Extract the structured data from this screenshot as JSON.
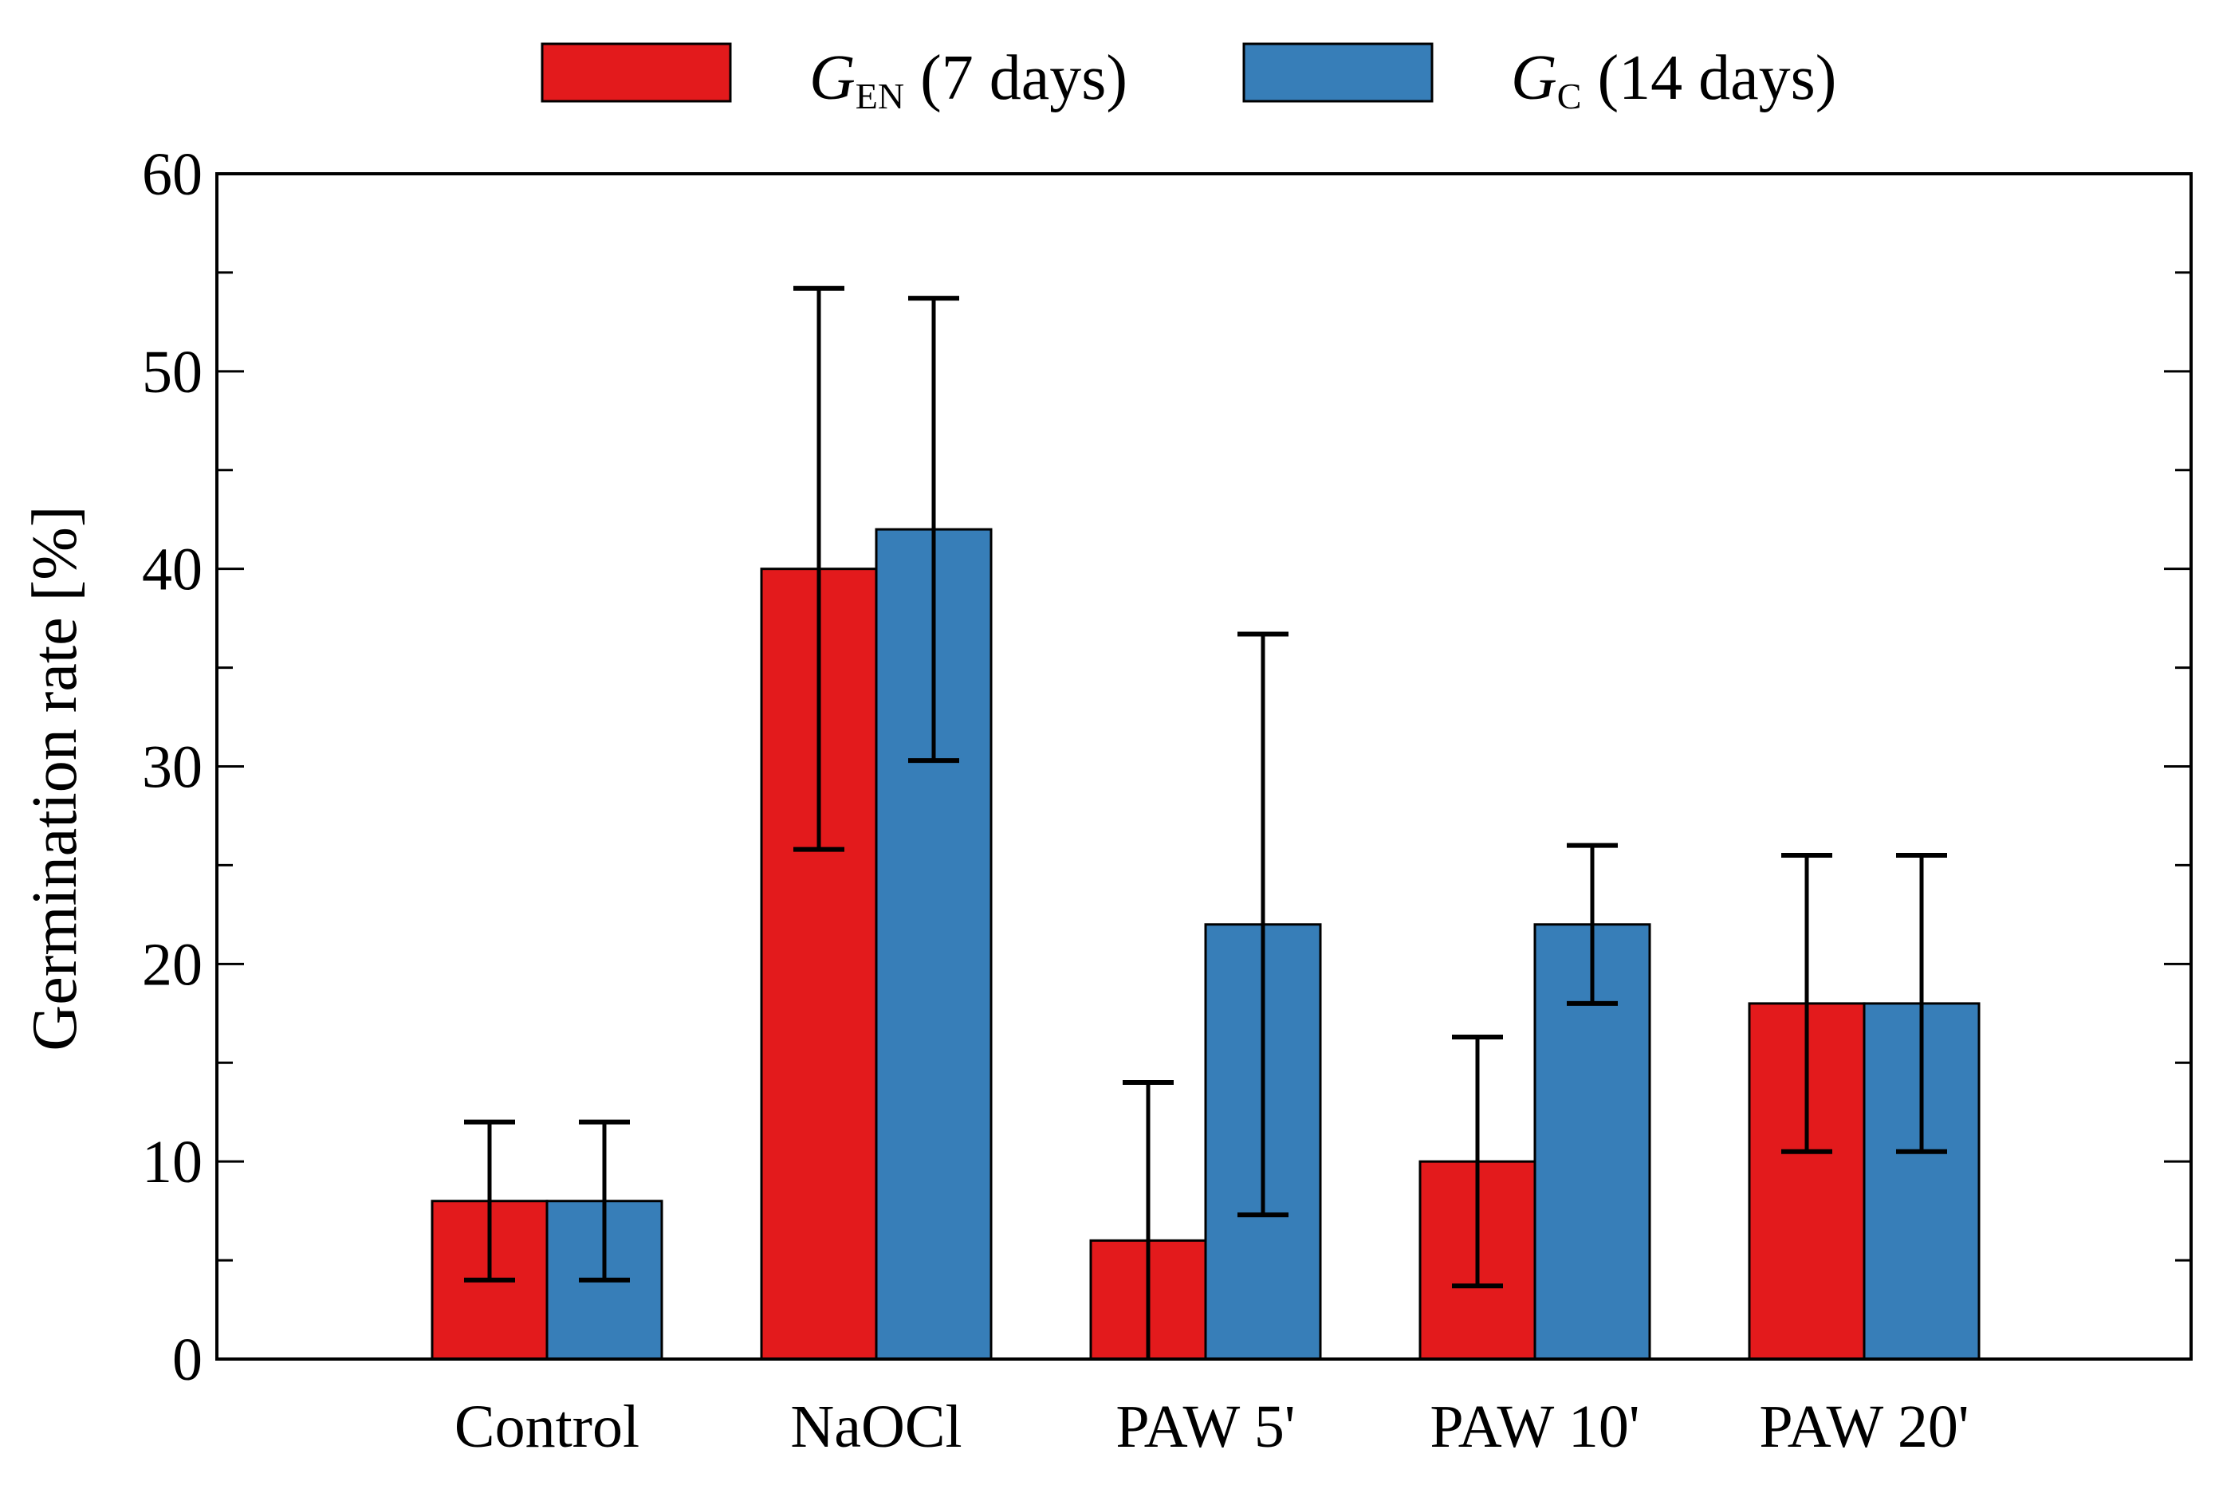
{
  "chart_data": {
    "type": "bar",
    "title": "",
    "xlabel": "",
    "ylabel": "Germination rate [%]",
    "ylim": [
      0,
      60
    ],
    "yticks": [
      0,
      10,
      20,
      30,
      40,
      50,
      60
    ],
    "categories": [
      "Control",
      "NaOCl",
      "PAW 5'",
      "PAW 10'",
      "PAW 20'"
    ],
    "legend_position": "top",
    "series": [
      {
        "name": "G_EN (7 days)",
        "symbol": "G",
        "subscript": "EN",
        "suffix": "(7 days)",
        "color": "#e31a1c",
        "values": [
          8,
          40,
          6,
          10,
          18
        ],
        "err_low": [
          4,
          25.8,
          0,
          3.7,
          10.5
        ],
        "err_high": [
          12,
          54.2,
          14,
          16.3,
          25.5
        ]
      },
      {
        "name": "G_C (14 days)",
        "symbol": "G",
        "subscript": "C",
        "suffix": "(14 days)",
        "color": "#377eb8",
        "values": [
          8,
          42,
          22,
          22,
          18
        ],
        "err_low": [
          4,
          30.3,
          7.3,
          18,
          10.5
        ],
        "err_high": [
          12,
          53.7,
          36.7,
          26,
          25.5
        ]
      }
    ]
  }
}
